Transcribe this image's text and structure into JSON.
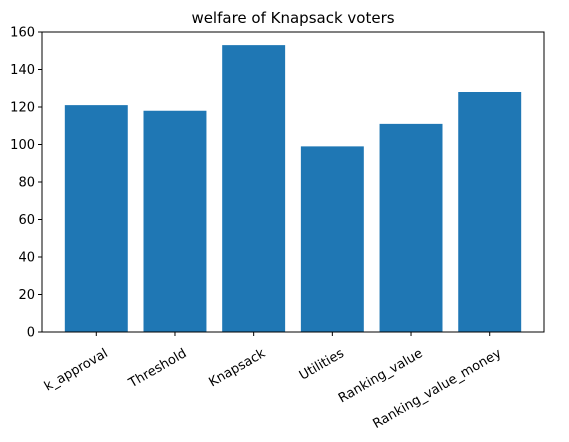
{
  "chart_data": {
    "type": "bar",
    "title": "welfare of Knapsack voters",
    "xlabel": "",
    "ylabel": "",
    "categories": [
      "k_approval",
      "Threshold",
      "Knapsack",
      "Utilities",
      "Ranking_value",
      "Ranking_value_money"
    ],
    "values": [
      121,
      118,
      153,
      99,
      111,
      128
    ],
    "ylim": [
      0,
      160
    ],
    "yticks": [
      0,
      20,
      40,
      60,
      80,
      100,
      120,
      140,
      160
    ],
    "grid": false,
    "legend": "none",
    "bar_color": "#1f77b4"
  }
}
